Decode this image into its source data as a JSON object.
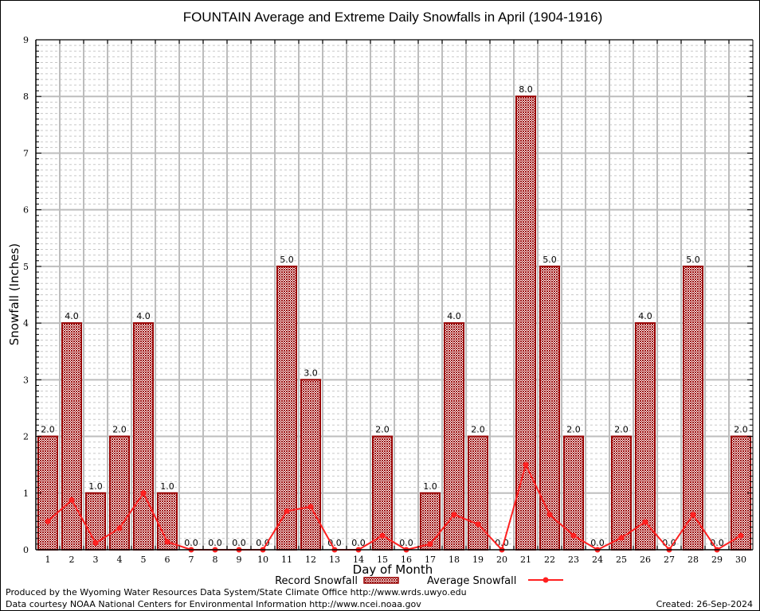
{
  "chart_data": {
    "type": "bar",
    "title": "FOUNTAIN Average and Extreme Daily Snowfalls in April (1904-1916)",
    "xlabel": "Day of Month",
    "ylabel": "Snowfall (Inches)",
    "ylim": [
      0,
      9
    ],
    "yticks": [
      "0",
      "1",
      "2",
      "3",
      "4",
      "5",
      "6",
      "7",
      "8",
      "9"
    ],
    "grid": true,
    "categories": [
      "1",
      "2",
      "3",
      "4",
      "5",
      "6",
      "7",
      "8",
      "9",
      "10",
      "11",
      "12",
      "13",
      "14",
      "15",
      "16",
      "17",
      "18",
      "19",
      "20",
      "21",
      "22",
      "23",
      "24",
      "25",
      "26",
      "27",
      "28",
      "29",
      "30"
    ],
    "series": [
      {
        "name": "Record Snowfall",
        "type": "bar",
        "values": [
          2.0,
          4.0,
          1.0,
          2.0,
          4.0,
          1.0,
          0.0,
          0.0,
          0.0,
          0.0,
          5.0,
          3.0,
          0.0,
          0.0,
          2.0,
          0.0,
          1.0,
          4.0,
          2.0,
          0.0,
          8.0,
          5.0,
          2.0,
          0.0,
          2.0,
          4.0,
          0.0,
          5.0,
          0.0,
          2.0
        ],
        "labels": [
          "2.0",
          "4.0",
          "1.0",
          "2.0",
          "4.0",
          "1.0",
          "0.0",
          "0.0",
          "0.0",
          "0.0",
          "5.0",
          "3.0",
          "0.0",
          "0.0",
          "2.0",
          "0.0",
          "1.0",
          "4.0",
          "2.0",
          "0.0",
          "8.0",
          "5.0",
          "2.0",
          "0.0",
          "2.0",
          "4.0",
          "0.0",
          "5.0",
          "0.0",
          "2.0"
        ],
        "color": "#990000"
      },
      {
        "name": "Average Snowfall",
        "type": "line",
        "values": [
          0.5,
          0.88,
          0.12,
          0.38,
          1.0,
          0.14,
          0,
          0,
          0,
          0,
          0.68,
          0.76,
          0,
          0,
          0.25,
          0,
          0.1,
          0.62,
          0.45,
          0,
          1.5,
          0.62,
          0.25,
          0,
          0.21,
          0.49,
          0,
          0.62,
          0,
          0.25
        ],
        "color": "#ff2020"
      }
    ],
    "legend": {
      "placement": "bottom"
    }
  },
  "footer": {
    "produced_by": "Produced by the Wyoming Water Resources Data System/State Climate Office http://www.wrds.uwyo.edu",
    "data_courtesy": "Data courtesy NOAA National Centers for Environmental Information http://www.ncei.noaa.gov",
    "created": "Created: 26-Sep-2024"
  }
}
